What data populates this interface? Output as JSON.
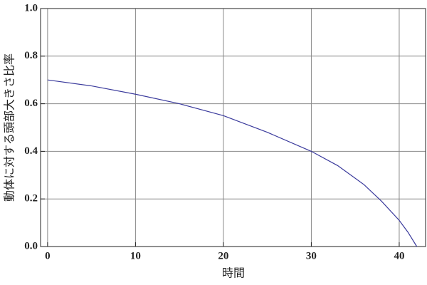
{
  "chart_data": {
    "type": "line",
    "x_label": "時間",
    "y_label": "動体に対する頭部大きさ比率",
    "x": [
      0,
      5,
      10,
      15,
      20,
      25,
      30,
      33,
      36,
      38,
      40,
      41,
      42
    ],
    "series": [
      {
        "color": "#3a3a9c",
        "values": [
          0.7,
          0.675,
          0.64,
          0.6,
          0.55,
          0.48,
          0.4,
          0.34,
          0.26,
          0.19,
          0.11,
          0.06,
          0.0
        ]
      }
    ],
    "xlim": [
      -0.8,
      43
    ],
    "ylim": [
      0,
      1
    ],
    "xticks": [
      0,
      10,
      20,
      30,
      40
    ],
    "yticks": [
      {
        "value": 0,
        "label": "0.0"
      },
      0.2,
      0.4,
      0.6,
      0.8,
      {
        "value": 1,
        "label": "1.0"
      }
    ],
    "grid": true
  }
}
